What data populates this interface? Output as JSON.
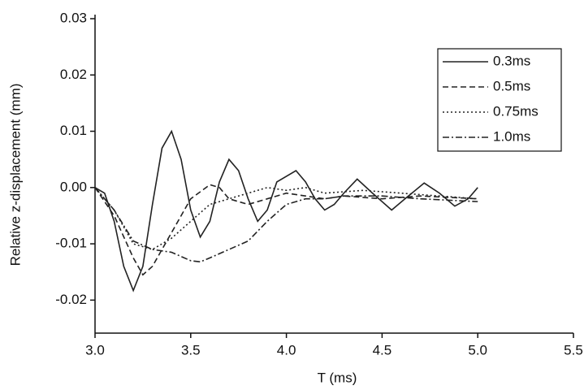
{
  "chart_data": {
    "type": "line",
    "xlabel": "T (ms)",
    "ylabel": "Relative z-displacement (mm)",
    "xlim": [
      3.0,
      5.5
    ],
    "xticks": [
      {
        "value": 3.0,
        "label": "3.0"
      },
      3.5,
      {
        "value": 4.0,
        "label": "4.0"
      },
      4.5,
      {
        "value": 5.0,
        "label": "5.0"
      },
      5.5
    ],
    "ylim": [
      -0.025,
      0.03
    ],
    "yticks": [
      -0.02,
      -0.01,
      {
        "value": 0,
        "label": "0.00"
      },
      0.01,
      0.02,
      0.03
    ],
    "legend": "upper right",
    "series": [
      {
        "name": "0.3ms",
        "color": "#222222",
        "dash": "solid",
        "x": [
          3.0,
          3.05,
          3.1,
          3.15,
          3.2,
          3.25,
          3.3,
          3.35,
          3.4,
          3.45,
          3.5,
          3.55,
          3.6,
          3.65,
          3.7,
          3.75,
          3.8,
          3.85,
          3.9,
          3.95,
          4.05,
          4.1,
          4.15,
          4.2,
          4.25,
          4.3,
          4.37,
          4.45,
          4.55,
          4.62,
          4.72,
          4.8,
          4.88,
          4.95,
          5.0
        ],
        "values": [
          0,
          -0.001,
          -0.006,
          -0.014,
          -0.0183,
          -0.014,
          -0.003,
          0.007,
          0.01,
          0.005,
          -0.004,
          -0.0088,
          -0.006,
          0.001,
          0.005,
          0.003,
          -0.002,
          -0.006,
          -0.004,
          0.001,
          0.003,
          0.001,
          -0.002,
          -0.004,
          -0.003,
          -0.001,
          0.0015,
          -0.001,
          -0.004,
          -0.002,
          0.0008,
          -0.001,
          -0.0033,
          -0.002,
          0
        ]
      },
      {
        "name": "0.5ms",
        "color": "#222222",
        "dash": "dashed",
        "x": [
          3.0,
          3.1,
          3.2,
          3.25,
          3.3,
          3.4,
          3.5,
          3.6,
          3.65,
          3.7,
          3.8,
          3.9,
          4.0,
          4.1,
          4.2,
          4.3,
          4.5,
          4.7,
          5.0
        ],
        "values": [
          0,
          -0.005,
          -0.0125,
          -0.0155,
          -0.014,
          -0.008,
          -0.002,
          0.0005,
          0,
          -0.002,
          -0.003,
          -0.002,
          -0.001,
          -0.0015,
          -0.002,
          -0.0015,
          -0.002,
          -0.0015,
          -0.002
        ]
      },
      {
        "name": "0.75ms",
        "color": "#222222",
        "dash": "dotted",
        "x": [
          3.0,
          3.1,
          3.2,
          3.3,
          3.4,
          3.5,
          3.6,
          3.7,
          3.8,
          3.9,
          4.0,
          4.1,
          4.2,
          4.4,
          4.6,
          4.8,
          5.0
        ],
        "values": [
          0,
          -0.004,
          -0.01,
          -0.011,
          -0.009,
          -0.006,
          -0.003,
          -0.002,
          -0.001,
          0,
          -0.0005,
          0,
          -0.001,
          -0.0005,
          -0.001,
          -0.0015,
          -0.002
        ]
      },
      {
        "name": "1.0ms",
        "color": "#222222",
        "dash": "dashdot",
        "x": [
          3.0,
          3.1,
          3.2,
          3.3,
          3.4,
          3.5,
          3.55,
          3.6,
          3.7,
          3.8,
          3.9,
          4.0,
          4.1,
          4.2,
          4.3,
          4.5,
          4.7,
          5.0
        ],
        "values": [
          0,
          -0.004,
          -0.0095,
          -0.011,
          -0.0115,
          -0.013,
          -0.0132,
          -0.0125,
          -0.011,
          -0.0095,
          -0.006,
          -0.003,
          -0.002,
          -0.002,
          -0.0015,
          -0.0015,
          -0.002,
          -0.0025
        ]
      }
    ]
  }
}
